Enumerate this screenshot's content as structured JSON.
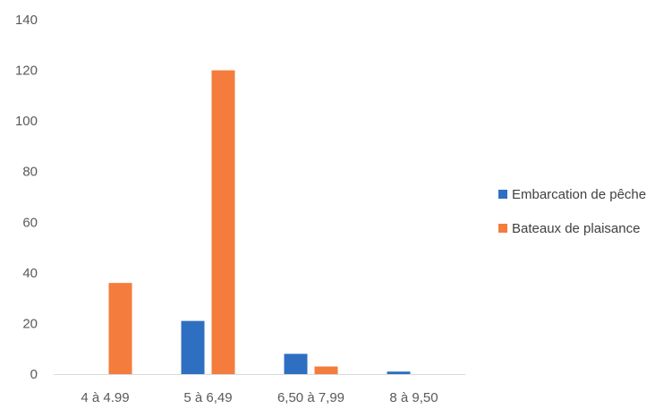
{
  "chart_data": {
    "type": "bar",
    "categories": [
      "4 à 4.99",
      "5 à 6,49",
      "6,50 à 7,99",
      "8 à 9,50"
    ],
    "series": [
      {
        "name": "Embarcation de pêche",
        "values": [
          0,
          21,
          8,
          1
        ],
        "color": "#2f6fc2"
      },
      {
        "name": "Bateaux de plaisance",
        "values": [
          36,
          120,
          3,
          0
        ],
        "color": "#f47c3c"
      }
    ],
    "ylim": [
      0,
      140
    ],
    "yticks": [
      "0",
      "20",
      "40",
      "60",
      "80",
      "100",
      "120",
      "140"
    ],
    "grid": false,
    "legend_position": "right",
    "title": "",
    "xlabel": "",
    "ylabel": ""
  }
}
